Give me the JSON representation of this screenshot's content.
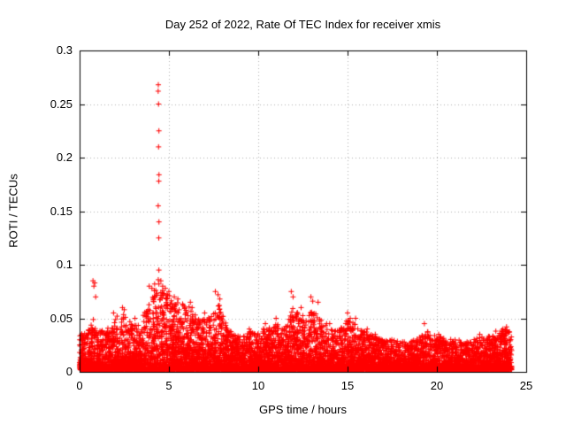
{
  "chart_data": {
    "type": "scatter",
    "title": "Day 252 of 2022, Rate Of TEC Index for receiver xmis",
    "xlabel": "GPS time / hours",
    "ylabel": "ROTI / TECUs",
    "xlim": [
      0,
      25
    ],
    "ylim": [
      0,
      0.3
    ],
    "xticks": [
      0,
      5,
      10,
      15,
      20,
      25
    ],
    "xtick_labels": [
      "0",
      "5",
      "10",
      "15",
      "20",
      "25"
    ],
    "yticks": [
      0,
      0.05,
      0.1,
      0.15,
      0.2,
      0.25,
      0.3
    ],
    "ytick_labels": [
      "0",
      "0.05",
      "0.1",
      "0.15",
      "0.2",
      "0.25",
      "0.3"
    ],
    "grid": true,
    "legend": "none",
    "marker": "plus",
    "marker_color": "#ff0000",
    "grid_color": "#b0b0b0",
    "axis_color": "#000000",
    "background": "#ffffff",
    "x_data_range": [
      0,
      24.2
    ],
    "point_cloud": {
      "count": 9000,
      "y_min": 0.002,
      "shape": 3,
      "seed": 2022252
    },
    "envelope": [
      [
        0,
        0.035
      ],
      [
        0.5,
        0.04
      ],
      [
        0.8,
        0.05
      ],
      [
        1.0,
        0.04
      ],
      [
        1.5,
        0.04
      ],
      [
        2.0,
        0.05
      ],
      [
        2.4,
        0.055
      ],
      [
        3.0,
        0.045
      ],
      [
        3.5,
        0.05
      ],
      [
        4.0,
        0.075
      ],
      [
        4.4,
        0.08
      ],
      [
        4.8,
        0.075
      ],
      [
        5.2,
        0.07
      ],
      [
        5.6,
        0.065
      ],
      [
        6.2,
        0.06
      ],
      [
        6.6,
        0.05
      ],
      [
        7.0,
        0.05
      ],
      [
        7.5,
        0.055
      ],
      [
        7.8,
        0.065
      ],
      [
        8.2,
        0.045
      ],
      [
        8.6,
        0.035
      ],
      [
        9.0,
        0.033
      ],
      [
        9.5,
        0.038
      ],
      [
        10.0,
        0.038
      ],
      [
        10.5,
        0.042
      ],
      [
        11.0,
        0.045
      ],
      [
        11.5,
        0.042
      ],
      [
        11.9,
        0.06
      ],
      [
        12.3,
        0.055
      ],
      [
        12.7,
        0.05
      ],
      [
        13.0,
        0.06
      ],
      [
        13.4,
        0.055
      ],
      [
        14.0,
        0.042
      ],
      [
        14.5,
        0.038
      ],
      [
        15.0,
        0.05
      ],
      [
        15.4,
        0.045
      ],
      [
        16.0,
        0.038
      ],
      [
        16.5,
        0.033
      ],
      [
        17.0,
        0.03
      ],
      [
        17.5,
        0.03
      ],
      [
        18.0,
        0.028
      ],
      [
        18.5,
        0.028
      ],
      [
        19.0,
        0.032
      ],
      [
        19.5,
        0.038
      ],
      [
        20.0,
        0.033
      ],
      [
        20.5,
        0.032
      ],
      [
        21.0,
        0.03
      ],
      [
        21.5,
        0.03
      ],
      [
        22.0,
        0.03
      ],
      [
        22.5,
        0.033
      ],
      [
        23.0,
        0.034
      ],
      [
        23.5,
        0.04
      ],
      [
        24.0,
        0.04
      ],
      [
        24.2,
        0.038
      ]
    ],
    "spike": {
      "x": 4.42,
      "values": [
        0.082,
        0.086,
        0.095,
        0.125,
        0.14,
        0.155,
        0.178,
        0.184,
        0.21,
        0.225,
        0.25,
        0.262,
        0.268
      ]
    },
    "outliers": [
      [
        0.75,
        0.085
      ],
      [
        0.8,
        0.08
      ],
      [
        0.85,
        0.083
      ],
      [
        0.9,
        0.07
      ],
      [
        1.9,
        0.055
      ],
      [
        2.1,
        0.052
      ],
      [
        2.4,
        0.06
      ],
      [
        2.5,
        0.058
      ],
      [
        3.1,
        0.05
      ],
      [
        3.9,
        0.08
      ],
      [
        4.05,
        0.078
      ],
      [
        4.2,
        0.082
      ],
      [
        4.55,
        0.085
      ],
      [
        4.65,
        0.08
      ],
      [
        4.8,
        0.078
      ],
      [
        5.0,
        0.075
      ],
      [
        5.3,
        0.07
      ],
      [
        5.5,
        0.068
      ],
      [
        6.2,
        0.065
      ],
      [
        6.3,
        0.06
      ],
      [
        7.0,
        0.055
      ],
      [
        7.6,
        0.075
      ],
      [
        7.75,
        0.072
      ],
      [
        7.85,
        0.068
      ],
      [
        9.5,
        0.04
      ],
      [
        10.4,
        0.045
      ],
      [
        11.0,
        0.05
      ],
      [
        11.85,
        0.075
      ],
      [
        11.95,
        0.07
      ],
      [
        12.4,
        0.06
      ],
      [
        12.95,
        0.07
      ],
      [
        13.05,
        0.066
      ],
      [
        13.35,
        0.065
      ],
      [
        14.0,
        0.045
      ],
      [
        15.0,
        0.055
      ],
      [
        15.15,
        0.05
      ],
      [
        15.45,
        0.05
      ],
      [
        16.1,
        0.04
      ],
      [
        16.55,
        0.035
      ],
      [
        19.3,
        0.045
      ],
      [
        20.1,
        0.035
      ],
      [
        22.4,
        0.035
      ],
      [
        23.3,
        0.038
      ],
      [
        23.7,
        0.04
      ],
      [
        23.9,
        0.042
      ]
    ]
  }
}
